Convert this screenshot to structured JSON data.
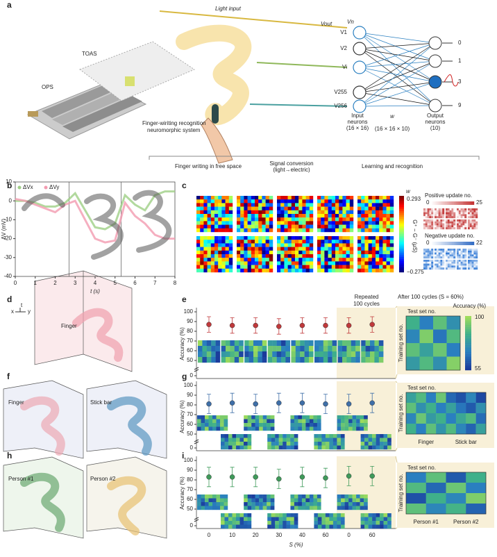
{
  "panel_labels": [
    "a",
    "b",
    "c",
    "d",
    "e",
    "f",
    "g",
    "h",
    "i"
  ],
  "panel_a": {
    "light_input": "Light input",
    "v_out": "Vout",
    "v_n": "Vn",
    "input_labels": [
      "V1",
      "V2",
      "Vi",
      "V255",
      "V256"
    ],
    "output_labels": [
      "0",
      "1",
      "3",
      "9"
    ],
    "input_neurons": [
      "Input",
      "neurons",
      "(16 × 16)"
    ],
    "w": "w",
    "w_size": "(16 × 16 × 10)",
    "output_neurons": [
      "Output",
      "neurons",
      "(10)"
    ],
    "toas": "TOAS",
    "ops": "OPS",
    "system": [
      "Finger-wiriting recognition",
      "neuromorphic system"
    ],
    "stages": [
      "Finger writing in free space",
      "Signal conversion",
      "(light→electric)",
      "Learning and recognition"
    ]
  },
  "panel_c": {
    "w": "w",
    "w_max": "0.293",
    "w_min": "−0.275",
    "g_label": "G⁺ − G⁻ (μS)",
    "positive": "Positive update no.",
    "pos_min": "0",
    "pos_max": "25",
    "negative": "Negative update no.",
    "neg_min": "0",
    "neg_max": "22"
  },
  "panel_d": {
    "finger": "Finger",
    "axes": [
      "t",
      "x",
      "y"
    ]
  },
  "panel_f": {
    "left": "Finger",
    "right": "Stick bar"
  },
  "panel_h": {
    "left": "Person #1",
    "right": "Person #2"
  },
  "chart_data": [
    {
      "type": "line",
      "xlabel": "t (s)",
      "ylabel": "ΔV (mV)",
      "x": [
        0,
        0.5,
        1,
        1.5,
        2,
        2.5,
        3,
        3.5,
        4,
        4.5,
        5,
        5.5,
        6,
        6.5,
        7,
        7.5,
        8
      ],
      "series": [
        {
          "name": "ΔVx",
          "color": "#9fcf86",
          "values": [
            0,
            0,
            -1,
            -3,
            -3,
            -1,
            4,
            -5,
            -14,
            -15,
            -12,
            3,
            -2,
            -5,
            3,
            5,
            5
          ]
        },
        {
          "name": "ΔVy",
          "color": "#f29bb0",
          "values": [
            1,
            0,
            -2,
            -4,
            -6,
            -2,
            0,
            -10,
            -20,
            -22,
            -21,
            -1,
            -8,
            -12,
            -18,
            -20,
            -20
          ]
        }
      ],
      "xlim": [
        0,
        8
      ],
      "xticks": [
        0,
        1,
        2,
        3,
        4,
        5,
        6,
        7,
        8
      ],
      "ylim": [
        -40,
        10
      ],
      "yticks": [
        -40,
        -30,
        -20,
        -10,
        0,
        10
      ]
    },
    {
      "type": "errorbar",
      "ylabel": "Accuracy (%)",
      "color": "#c0393b",
      "values": [
        87,
        86,
        86,
        85,
        86,
        86,
        86,
        87
      ],
      "errors": [
        8,
        8,
        8,
        8,
        8,
        8,
        8,
        8
      ],
      "ylim": [
        0,
        100
      ],
      "yticks": [
        0,
        50,
        60,
        70,
        80,
        90,
        100
      ],
      "shaded_label": [
        "Repeated",
        "100 cycles"
      ],
      "matrix": {
        "header": "After 100 cycles (S = 60%)",
        "clabel": "Accuracy (%)",
        "clim": [
          55,
          100
        ],
        "xlabel": "Test set no.",
        "ylabel": "Training set no.",
        "values": [
          [
            85,
            70,
            90,
            75
          ],
          [
            72,
            95,
            68,
            88
          ],
          [
            90,
            80,
            92,
            70
          ],
          [
            78,
            88,
            75,
            96
          ]
        ]
      }
    },
    {
      "type": "errorbar",
      "ylabel": "Accuracy (%)",
      "color": "#3f6fa8",
      "values": [
        81,
        82,
        81,
        82,
        82,
        81,
        81,
        82
      ],
      "errors": [
        10,
        10,
        10,
        10,
        10,
        10,
        10,
        10
      ],
      "ylim": [
        0,
        100
      ],
      "yticks": [
        0,
        50,
        60,
        70,
        80,
        90,
        100
      ],
      "matrix": {
        "xlabel": "Test set no.",
        "ylabel": "Training set no.",
        "clim": [
          55,
          100
        ],
        "groups": [
          "Finger",
          "Stick bar"
        ],
        "values": [
          [
            80,
            88,
            70,
            92,
            65,
            60,
            72,
            58
          ],
          [
            90,
            75,
            85,
            70,
            80,
            68,
            62,
            75
          ],
          [
            72,
            92,
            78,
            85,
            70,
            82,
            88,
            66
          ],
          [
            85,
            70,
            90,
            76,
            88,
            72,
            64,
            80
          ]
        ]
      }
    },
    {
      "type": "errorbar",
      "ylabel": "Accuracy (%)",
      "xlabel": "S (%)",
      "color": "#3f9a5a",
      "categories": [
        "0",
        "10",
        "20",
        "30",
        "40",
        "60",
        "0",
        "60"
      ],
      "values": [
        83,
        83,
        83,
        81,
        83,
        82,
        84,
        84
      ],
      "errors": [
        10,
        10,
        10,
        10,
        10,
        10,
        10,
        10
      ],
      "ylim": [
        0,
        100
      ],
      "yticks": [
        0,
        50,
        60,
        70,
        80,
        90,
        100
      ],
      "matrix": {
        "xlabel": "Test set no.",
        "ylabel": "Training set no.",
        "clim": [
          55,
          100
        ],
        "groups": [
          "Person #1",
          "Person #2"
        ],
        "values": [
          [
            70,
            90,
            62,
            85
          ],
          [
            88,
            65,
            92,
            70
          ],
          [
            60,
            85,
            72,
            95
          ],
          [
            90,
            72,
            86,
            64
          ]
        ]
      }
    }
  ]
}
